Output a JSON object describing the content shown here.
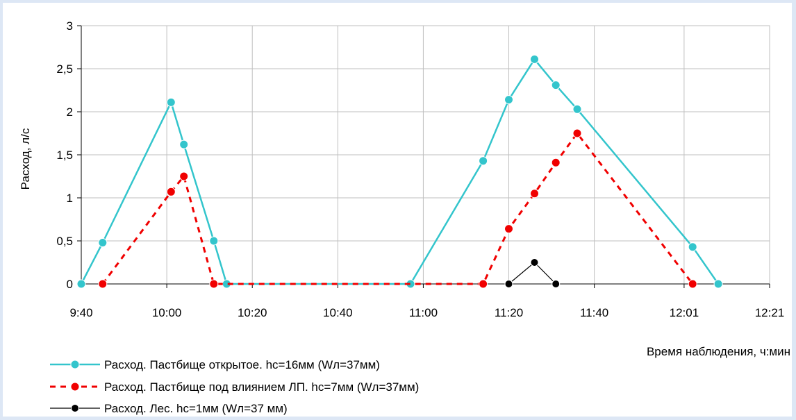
{
  "chart_data": {
    "type": "line",
    "title": "",
    "xlabel": "Время наблюдения, ч:мин",
    "ylabel": "Расход, л/с",
    "xlim": [
      "9:40",
      "12:21"
    ],
    "ylim": [
      0,
      3
    ],
    "grid": true,
    "legend": "bottom-left",
    "x_ticks": [
      "9:40",
      "10:00",
      "10:20",
      "10:40",
      "11:00",
      "11:20",
      "11:40",
      "12:01",
      "12:21"
    ],
    "y_ticks": [
      "0",
      "0,5",
      "1",
      "1,5",
      "2",
      "2,5",
      "3"
    ],
    "series": [
      {
        "name": "Расход. Пастбище открытое. hc=16мм (Wл=37мм)",
        "color": "#33c5cc",
        "style": "solid",
        "x": [
          "9:40",
          "9:45",
          "10:01",
          "10:04",
          "10:11",
          "10:14",
          "10:57",
          "11:14",
          "11:20",
          "11:26",
          "11:31",
          "11:36",
          "12:03",
          "12:09"
        ],
        "y": [
          0,
          0.48,
          2.11,
          1.62,
          0.5,
          0,
          0,
          1.43,
          2.14,
          2.61,
          2.31,
          2.03,
          0.43,
          0
        ]
      },
      {
        "name": "Расход. Пастбище под влиянием ЛП. hc=7мм (Wл=37мм)",
        "color": "#f00000",
        "style": "dashed",
        "x": [
          "9:45",
          "10:01",
          "10:04",
          "10:11",
          "11:14",
          "11:20",
          "11:26",
          "11:31",
          "11:36",
          "12:03"
        ],
        "y": [
          0,
          1.07,
          1.25,
          0,
          0,
          0.64,
          1.05,
          1.41,
          1.75,
          0
        ]
      },
      {
        "name": "Расход. Лес. hc=1мм (Wл=37 мм)",
        "color": "#000000",
        "style": "solid",
        "x": [
          "11:20",
          "11:26",
          "11:31"
        ],
        "y": [
          0,
          0.25,
          0
        ]
      }
    ]
  }
}
